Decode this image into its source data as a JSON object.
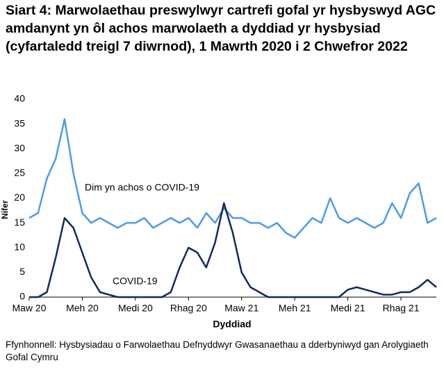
{
  "chart_data": {
    "type": "line",
    "title": "Siart 4: Marwolaethau preswylwyr cartrefi gofal yr hysbyswyd AGC amdanynt yn ôl achos marwolaeth a dyddiad yr hysbysiad (cyfartaledd treigl 7 diwrnod), 1 Mawrth 2020 i 2 Chwefror 2022",
    "source": "Ffynhonnell: Hysbysiadau o Farwolaethau Defnyddwyr Gwasanaethau a dderbyniwyd gan Arolygiaeth Gofal Cymru",
    "x_label": "Dyddiad",
    "y_label": "Nifer",
    "categories": [
      "Maw 20",
      null,
      null,
      null,
      null,
      null,
      "Meh 20",
      null,
      null,
      null,
      null,
      null,
      "Medi 20",
      null,
      null,
      null,
      null,
      null,
      "Rhag 20",
      null,
      null,
      null,
      null,
      null,
      "Maw 21",
      null,
      null,
      null,
      null,
      null,
      "Meh 21",
      null,
      null,
      null,
      null,
      null,
      "Medi 21",
      null,
      null,
      null,
      null,
      null,
      "Rhag 21",
      null,
      null,
      null,
      null
    ],
    "ylim": [
      0,
      40
    ],
    "yticks": [
      0,
      5,
      10,
      15,
      20,
      25,
      30,
      35,
      40
    ],
    "series": [
      {
        "name": "Dim yn achos o COVID-19",
        "color": "#4f9ae6",
        "values": [
          16,
          17,
          24,
          28,
          36,
          25,
          17,
          15,
          16,
          15,
          14,
          15,
          15,
          16,
          14,
          15,
          16,
          15,
          16,
          14,
          17,
          15,
          18,
          16,
          16,
          15,
          15,
          14,
          15,
          13,
          12,
          14,
          16,
          15,
          20,
          16,
          15,
          16,
          15,
          14,
          15,
          19,
          16,
          21,
          23,
          15,
          16
        ]
      },
      {
        "name": "COVID-19",
        "color": "#11295a",
        "values": [
          0,
          0,
          1,
          8,
          16,
          14,
          9,
          4,
          1,
          0.5,
          0,
          0,
          0,
          0,
          0,
          0,
          1,
          6,
          10,
          9,
          6,
          11,
          19,
          13,
          5,
          2,
          1,
          0,
          0,
          0,
          0,
          0,
          0,
          0,
          0,
          0,
          1.5,
          2,
          1.5,
          1,
          0.5,
          0.5,
          1,
          1,
          2,
          3.5,
          2
        ]
      }
    ]
  }
}
